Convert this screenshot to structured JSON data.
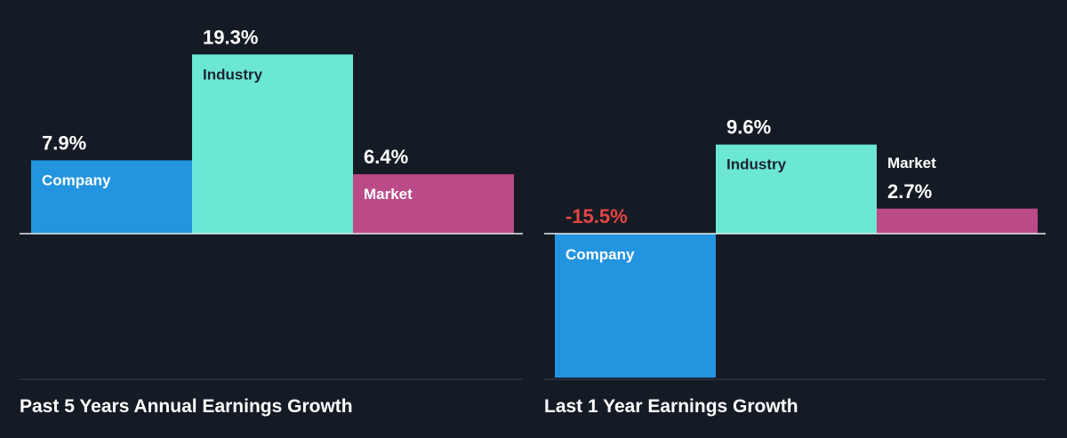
{
  "chart_data": [
    {
      "type": "bar",
      "title": "Past 5 Years Annual Earnings Growth",
      "categories": [
        "Company",
        "Industry",
        "Market"
      ],
      "values": [
        7.9,
        19.3,
        6.4
      ],
      "value_labels": [
        "7.9%",
        "19.3%",
        "6.4%"
      ],
      "colors": [
        "#2394df",
        "#6ce7d6",
        "#bb4a88"
      ],
      "value_label_colors": [
        "#ffffff",
        "#ffffff",
        "#ffffff"
      ],
      "category_label_colors": [
        "#ffffff",
        "#1b2430",
        "#ffffff"
      ],
      "unit": "%",
      "grid": false,
      "legend": "none"
    },
    {
      "type": "bar",
      "title": "Last 1 Year Earnings Growth",
      "categories": [
        "Company",
        "Industry",
        "Market"
      ],
      "values": [
        -15.5,
        9.6,
        2.7
      ],
      "value_labels": [
        "-15.5%",
        "9.6%",
        "2.7%"
      ],
      "colors": [
        "#2394df",
        "#6ce7d6",
        "#bb4a88"
      ],
      "value_label_colors": [
        "#e64545",
        "#ffffff",
        "#ffffff"
      ],
      "category_label_colors": [
        "#ffffff",
        "#1b2430",
        "#ffffff"
      ],
      "unit": "%",
      "grid": false,
      "legend": "none"
    }
  ]
}
